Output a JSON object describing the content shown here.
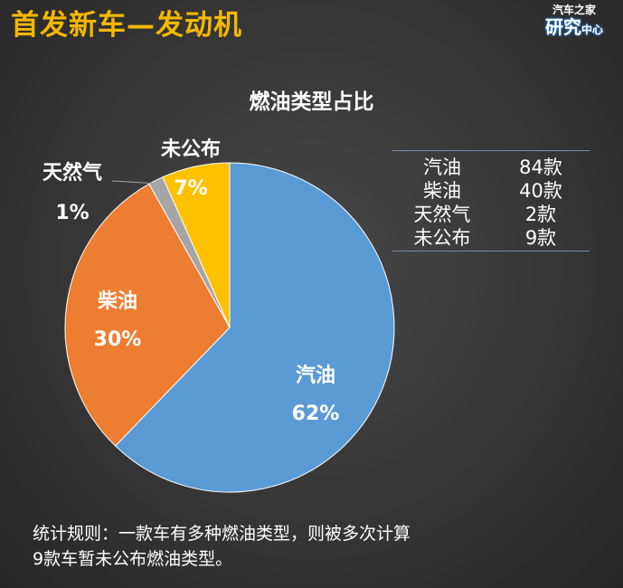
{
  "header": {
    "title": "首发新车—发动机"
  },
  "logo": {
    "top": "汽车之家",
    "main": "研究",
    "sub": "中心"
  },
  "colors": {
    "title": "#f5b800",
    "gasoline": "#5b9bd5",
    "diesel": "#ed7d31",
    "natural_gas": "#a5a5a5",
    "undisclosed": "#ffc000"
  },
  "chart_data": {
    "type": "pie",
    "title": "燃油类型占比",
    "slices": [
      {
        "label": "汽油",
        "percent_label": "62%",
        "value": 84
      },
      {
        "label": "柴油",
        "percent_label": "30%",
        "value": 40
      },
      {
        "label": "天然气",
        "percent_label": "1%",
        "value": 2
      },
      {
        "label": "未公布",
        "percent_label": "7%",
        "value": 9
      }
    ]
  },
  "table": {
    "rows": [
      {
        "name": "汽油",
        "count": "84款"
      },
      {
        "name": "柴油",
        "count": "40款"
      },
      {
        "name": "天然气",
        "count": "2款"
      },
      {
        "name": "未公布",
        "count": "9款"
      }
    ]
  },
  "note": {
    "line1": "统计规则：一款车有多种燃油类型，则被多次计算",
    "line2": "9款车暂未公布燃油类型。"
  }
}
